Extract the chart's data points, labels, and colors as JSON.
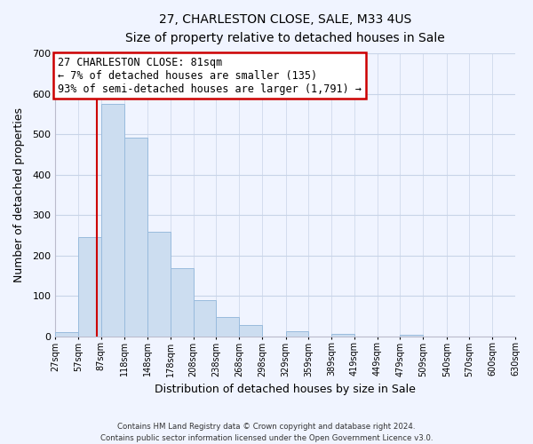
{
  "title": "27, CHARLESTON CLOSE, SALE, M33 4US",
  "subtitle": "Size of property relative to detached houses in Sale",
  "bar_edges": [
    27,
    57,
    87,
    118,
    148,
    178,
    208,
    238,
    268,
    298,
    329,
    359,
    389,
    419,
    449,
    479,
    509,
    540,
    570,
    600,
    630
  ],
  "bar_heights": [
    10,
    245,
    575,
    493,
    258,
    168,
    90,
    47,
    27,
    0,
    13,
    0,
    5,
    0,
    0,
    3,
    0,
    0,
    0,
    0
  ],
  "bar_color": "#ccddf0",
  "bar_edge_color": "#99bbdd",
  "vline_x": 81,
  "vline_color": "#cc0000",
  "xlabel": "Distribution of detached houses by size in Sale",
  "ylabel": "Number of detached properties",
  "ylim": [
    0,
    700
  ],
  "yticks": [
    0,
    100,
    200,
    300,
    400,
    500,
    600,
    700
  ],
  "annotation_title": "27 CHARLESTON CLOSE: 81sqm",
  "annotation_line1": "← 7% of detached houses are smaller (135)",
  "annotation_line2": "93% of semi-detached houses are larger (1,791) →",
  "footer_line1": "Contains HM Land Registry data © Crown copyright and database right 2024.",
  "footer_line2": "Contains public sector information licensed under the Open Government Licence v3.0.",
  "tick_labels": [
    "27sqm",
    "57sqm",
    "87sqm",
    "118sqm",
    "148sqm",
    "178sqm",
    "208sqm",
    "238sqm",
    "268sqm",
    "298sqm",
    "329sqm",
    "359sqm",
    "389sqm",
    "419sqm",
    "449sqm",
    "479sqm",
    "509sqm",
    "540sqm",
    "570sqm",
    "600sqm",
    "630sqm"
  ],
  "bg_color": "#f0f4ff",
  "grid_color": "#c8d4e8"
}
